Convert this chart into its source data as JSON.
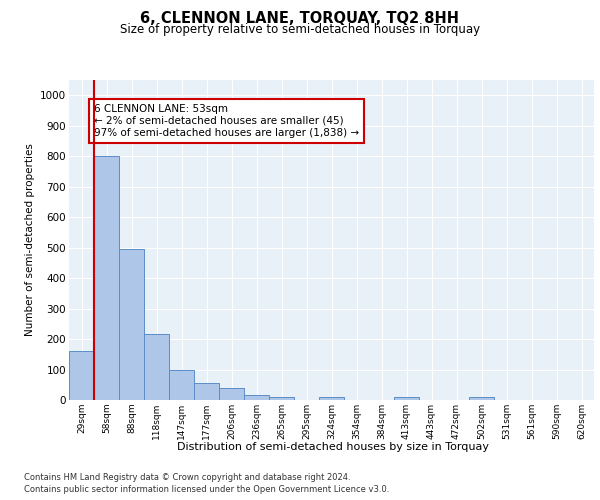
{
  "title": "6, CLENNON LANE, TORQUAY, TQ2 8HH",
  "subtitle": "Size of property relative to semi-detached houses in Torquay",
  "xlabel": "Distribution of semi-detached houses by size in Torquay",
  "ylabel": "Number of semi-detached properties",
  "categories": [
    "29sqm",
    "58sqm",
    "88sqm",
    "118sqm",
    "147sqm",
    "177sqm",
    "206sqm",
    "236sqm",
    "265sqm",
    "295sqm",
    "324sqm",
    "354sqm",
    "384sqm",
    "413sqm",
    "443sqm",
    "472sqm",
    "502sqm",
    "531sqm",
    "561sqm",
    "590sqm",
    "620sqm"
  ],
  "values": [
    160,
    800,
    495,
    215,
    100,
    55,
    38,
    18,
    10,
    0,
    10,
    0,
    0,
    10,
    0,
    0,
    10,
    0,
    0,
    0,
    0
  ],
  "bar_color": "#aec6e8",
  "bar_edge_color": "#5b8dc8",
  "highlight_line_color": "#cc0000",
  "annotation_text": "6 CLENNON LANE: 53sqm\n← 2% of semi-detached houses are smaller (45)\n97% of semi-detached houses are larger (1,838) →",
  "annotation_box_color": "white",
  "annotation_box_edge_color": "#cc0000",
  "ylim": [
    0,
    1050
  ],
  "yticks": [
    0,
    100,
    200,
    300,
    400,
    500,
    600,
    700,
    800,
    900,
    1000
  ],
  "background_color": "#e8f0f8",
  "grid_color": "white",
  "footer_line1": "Contains HM Land Registry data © Crown copyright and database right 2024.",
  "footer_line2": "Contains public sector information licensed under the Open Government Licence v3.0."
}
